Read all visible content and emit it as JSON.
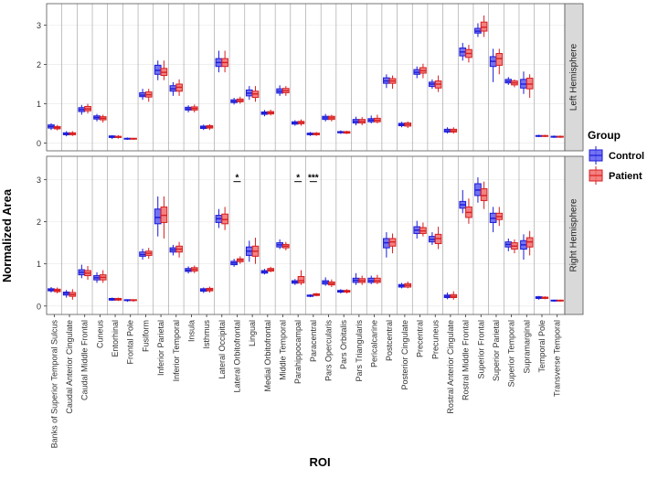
{
  "chart_data": {
    "type": "box",
    "xlabel": "ROI",
    "ylabel": "Normalized Area",
    "legend": {
      "title": "Group",
      "position": "right",
      "entries": [
        "Control",
        "Patient"
      ]
    },
    "colors": {
      "Control": "#5b5bf0",
      "Patient": "#f26b6b",
      "Control_stroke": "#1a1ad9",
      "Patient_stroke": "#d81e1e"
    },
    "grid": true,
    "ylim": [
      -0.2,
      3.55
    ],
    "yticks": [
      0,
      1,
      2,
      3
    ],
    "categories": [
      "Banks of Superior Temporal Sulcus",
      "Caudal Anterior Cingulate",
      "Caudal Middle Frontal",
      "Cuneus",
      "Entorhinal",
      "Frontal Pole",
      "Fusiform",
      "Inferior Parietal",
      "Inferior Temporal",
      "Insula",
      "Isthmus",
      "Lateral Occipital",
      "Lateral Orbitofrontal",
      "Lingual",
      "Medial Orbitofrontal",
      "Middle Temporal",
      "Parahippocampal",
      "Paracentral",
      "Pars Opercularis",
      "Pars Orbitalis",
      "Pars Triangularis",
      "Pericalcarine",
      "Postcentral",
      "Posterior Cingulate",
      "Precentral",
      "Precuneus",
      "Rostral Anterior Cingulate",
      "Rostral Middle Frontal",
      "Superior Frontal",
      "Superior Parietal",
      "Superior Temporal",
      "Supramarginal",
      "Temporal Pole",
      "Transverse Temporal"
    ],
    "panels": [
      {
        "name": "Left Hemisphere",
        "annotations": [],
        "boxes": {
          "Control": [
            [
              0.33,
              0.38,
              0.42,
              0.46,
              0.5
            ],
            [
              0.17,
              0.21,
              0.23,
              0.26,
              0.3
            ],
            [
              0.72,
              0.8,
              0.85,
              0.9,
              0.97
            ],
            [
              0.55,
              0.61,
              0.65,
              0.69,
              0.74
            ],
            [
              0.1,
              0.14,
              0.16,
              0.18,
              0.2
            ],
            [
              0.08,
              0.1,
              0.11,
              0.12,
              0.14
            ],
            [
              1.1,
              1.18,
              1.22,
              1.28,
              1.38
            ],
            [
              1.6,
              1.75,
              1.85,
              1.98,
              2.1
            ],
            [
              1.2,
              1.32,
              1.38,
              1.46,
              1.55
            ],
            [
              0.78,
              0.84,
              0.87,
              0.91,
              0.96
            ],
            [
              0.33,
              0.37,
              0.4,
              0.43,
              0.47
            ],
            [
              1.8,
              1.95,
              2.05,
              2.15,
              2.35
            ],
            [
              0.98,
              1.03,
              1.06,
              1.1,
              1.15
            ],
            [
              1.1,
              1.2,
              1.27,
              1.35,
              1.45
            ],
            [
              0.68,
              0.73,
              0.76,
              0.79,
              0.84
            ],
            [
              1.2,
              1.27,
              1.32,
              1.38,
              1.47
            ],
            [
              0.44,
              0.48,
              0.51,
              0.54,
              0.58
            ],
            [
              0.18,
              0.21,
              0.23,
              0.25,
              0.28
            ],
            [
              0.55,
              0.6,
              0.64,
              0.68,
              0.74
            ],
            [
              0.23,
              0.26,
              0.27,
              0.29,
              0.32
            ],
            [
              0.45,
              0.51,
              0.55,
              0.6,
              0.67
            ],
            [
              0.5,
              0.54,
              0.58,
              0.62,
              0.7
            ],
            [
              1.4,
              1.52,
              1.58,
              1.66,
              1.75
            ],
            [
              0.4,
              0.44,
              0.47,
              0.5,
              0.54
            ],
            [
              1.65,
              1.75,
              1.8,
              1.87,
              1.95
            ],
            [
              1.38,
              1.44,
              1.5,
              1.55,
              1.62
            ],
            [
              0.24,
              0.28,
              0.31,
              0.35,
              0.4
            ],
            [
              2.1,
              2.22,
              2.32,
              2.42,
              2.55
            ],
            [
              2.7,
              2.8,
              2.85,
              2.92,
              3.05
            ],
            [
              1.55,
              1.95,
              2.08,
              2.2,
              2.4
            ],
            [
              1.48,
              1.53,
              1.57,
              1.62,
              1.68
            ],
            [
              1.25,
              1.4,
              1.5,
              1.62,
              1.82
            ],
            [
              0.15,
              0.17,
              0.18,
              0.19,
              0.21
            ],
            [
              0.13,
              0.15,
              0.16,
              0.17,
              0.19
            ]
          ],
          "Patient": [
            [
              0.32,
              0.36,
              0.39,
              0.42,
              0.46
            ],
            [
              0.18,
              0.21,
              0.24,
              0.26,
              0.3
            ],
            [
              0.75,
              0.82,
              0.87,
              0.93,
              1.0
            ],
            [
              0.52,
              0.59,
              0.63,
              0.67,
              0.72
            ],
            [
              0.11,
              0.14,
              0.15,
              0.17,
              0.2
            ],
            [
              0.08,
              0.1,
              0.11,
              0.12,
              0.13
            ],
            [
              1.05,
              1.17,
              1.23,
              1.3,
              1.38
            ],
            [
              1.6,
              1.72,
              1.8,
              1.9,
              2.1
            ],
            [
              1.2,
              1.32,
              1.42,
              1.5,
              1.62
            ],
            [
              0.78,
              0.84,
              0.88,
              0.92,
              0.98
            ],
            [
              0.33,
              0.38,
              0.41,
              0.44,
              0.48
            ],
            [
              1.8,
              1.95,
              2.05,
              2.15,
              2.35
            ],
            [
              1.0,
              1.05,
              1.08,
              1.12,
              1.18
            ],
            [
              1.05,
              1.16,
              1.25,
              1.32,
              1.45
            ],
            [
              0.7,
              0.74,
              0.77,
              0.8,
              0.85
            ],
            [
              1.2,
              1.28,
              1.33,
              1.39,
              1.45
            ],
            [
              0.44,
              0.49,
              0.52,
              0.55,
              0.6
            ],
            [
              0.18,
              0.21,
              0.23,
              0.25,
              0.28
            ],
            [
              0.55,
              0.6,
              0.64,
              0.68,
              0.72
            ],
            [
              0.23,
              0.25,
              0.27,
              0.29,
              0.31
            ],
            [
              0.45,
              0.51,
              0.55,
              0.6,
              0.66
            ],
            [
              0.5,
              0.54,
              0.58,
              0.63,
              0.72
            ],
            [
              1.38,
              1.52,
              1.58,
              1.64,
              1.72
            ],
            [
              0.38,
              0.43,
              0.47,
              0.51,
              0.55
            ],
            [
              1.65,
              1.78,
              1.84,
              1.92,
              2.02
            ],
            [
              1.3,
              1.4,
              1.5,
              1.58,
              1.72
            ],
            [
              0.24,
              0.28,
              0.31,
              0.35,
              0.4
            ],
            [
              2.05,
              2.18,
              2.28,
              2.38,
              2.5
            ],
            [
              2.7,
              2.85,
              2.95,
              3.08,
              3.25
            ],
            [
              1.75,
              1.98,
              2.15,
              2.28,
              2.4
            ],
            [
              1.42,
              1.48,
              1.53,
              1.58,
              1.62
            ],
            [
              1.15,
              1.38,
              1.5,
              1.65,
              1.75
            ],
            [
              0.15,
              0.17,
              0.18,
              0.19,
              0.21
            ],
            [
              0.13,
              0.15,
              0.16,
              0.17,
              0.19
            ]
          ]
        }
      },
      {
        "name": "Right Hemisphere",
        "annotations": [
          {
            "category": "Lateral Orbitofrontal",
            "text": "*"
          },
          {
            "category": "Parahippocampal",
            "text": "*"
          },
          {
            "category": "Paracentral",
            "text": "***"
          }
        ],
        "boxes": {
          "Control": [
            [
              0.32,
              0.36,
              0.38,
              0.41,
              0.45
            ],
            [
              0.2,
              0.26,
              0.3,
              0.33,
              0.38
            ],
            [
              0.66,
              0.74,
              0.8,
              0.86,
              0.98
            ],
            [
              0.55,
              0.62,
              0.67,
              0.72,
              0.8
            ],
            [
              0.12,
              0.14,
              0.16,
              0.18,
              0.2
            ],
            [
              0.1,
              0.13,
              0.14,
              0.15,
              0.16
            ],
            [
              1.1,
              1.18,
              1.22,
              1.28,
              1.36
            ],
            [
              1.65,
              1.95,
              2.1,
              2.3,
              2.6
            ],
            [
              1.2,
              1.28,
              1.33,
              1.38,
              1.45
            ],
            [
              0.77,
              0.82,
              0.85,
              0.89,
              0.94
            ],
            [
              0.31,
              0.35,
              0.38,
              0.41,
              0.44
            ],
            [
              1.85,
              1.98,
              2.07,
              2.15,
              2.3
            ],
            [
              0.93,
              0.98,
              1.02,
              1.06,
              1.12
            ],
            [
              1.05,
              1.2,
              1.3,
              1.4,
              1.55
            ],
            [
              0.75,
              0.78,
              0.81,
              0.84,
              0.88
            ],
            [
              1.35,
              1.4,
              1.45,
              1.5,
              1.58
            ],
            [
              0.5,
              0.54,
              0.57,
              0.6,
              0.64
            ],
            [
              0.21,
              0.23,
              0.24,
              0.26,
              0.28
            ],
            [
              0.48,
              0.52,
              0.56,
              0.6,
              0.68
            ],
            [
              0.3,
              0.33,
              0.35,
              0.37,
              0.4
            ],
            [
              0.5,
              0.56,
              0.61,
              0.66,
              0.78
            ],
            [
              0.52,
              0.56,
              0.6,
              0.66,
              0.72
            ],
            [
              1.15,
              1.38,
              1.5,
              1.6,
              1.75
            ],
            [
              0.42,
              0.45,
              0.48,
              0.51,
              0.55
            ],
            [
              1.6,
              1.72,
              1.8,
              1.88,
              2.02
            ],
            [
              1.45,
              1.52,
              1.58,
              1.65,
              1.75
            ],
            [
              0.16,
              0.2,
              0.23,
              0.26,
              0.32
            ],
            [
              2.2,
              2.32,
              2.4,
              2.48,
              2.75
            ],
            [
              2.45,
              2.62,
              2.75,
              2.9,
              3.05
            ],
            [
              1.75,
              1.98,
              2.08,
              2.2,
              2.35
            ],
            [
              1.3,
              1.4,
              1.46,
              1.52,
              1.6
            ],
            [
              1.1,
              1.35,
              1.45,
              1.55,
              1.7
            ],
            [
              0.15,
              0.18,
              0.2,
              0.22,
              0.24
            ],
            [
              0.1,
              0.12,
              0.13,
              0.14,
              0.15
            ]
          ],
          "Patient": [
            [
              0.3,
              0.34,
              0.37,
              0.4,
              0.44
            ],
            [
              0.15,
              0.23,
              0.27,
              0.32,
              0.4
            ],
            [
              0.62,
              0.72,
              0.78,
              0.84,
              0.95
            ],
            [
              0.55,
              0.62,
              0.68,
              0.74,
              0.85
            ],
            [
              0.12,
              0.14,
              0.16,
              0.18,
              0.2
            ],
            [
              0.1,
              0.13,
              0.14,
              0.15,
              0.16
            ],
            [
              1.12,
              1.2,
              1.25,
              1.3,
              1.38
            ],
            [
              1.6,
              1.98,
              2.15,
              2.35,
              2.6
            ],
            [
              1.15,
              1.28,
              1.35,
              1.42,
              1.52
            ],
            [
              0.78,
              0.83,
              0.87,
              0.91,
              0.96
            ],
            [
              0.32,
              0.36,
              0.39,
              0.42,
              0.46
            ],
            [
              1.8,
              1.95,
              2.05,
              2.18,
              2.35
            ],
            [
              1.0,
              1.05,
              1.09,
              1.12,
              1.18
            ],
            [
              1.0,
              1.18,
              1.3,
              1.42,
              1.62
            ],
            [
              0.8,
              0.83,
              0.86,
              0.89,
              0.93
            ],
            [
              1.32,
              1.38,
              1.42,
              1.46,
              1.52
            ],
            [
              0.5,
              0.55,
              0.6,
              0.7,
              0.85
            ],
            [
              0.23,
              0.25,
              0.27,
              0.29,
              0.31
            ],
            [
              0.45,
              0.5,
              0.53,
              0.57,
              0.63
            ],
            [
              0.3,
              0.33,
              0.35,
              0.37,
              0.4
            ],
            [
              0.5,
              0.56,
              0.6,
              0.65,
              0.72
            ],
            [
              0.52,
              0.56,
              0.6,
              0.66,
              0.74
            ],
            [
              1.25,
              1.42,
              1.52,
              1.6,
              1.72
            ],
            [
              0.42,
              0.45,
              0.49,
              0.53,
              0.58
            ],
            [
              1.65,
              1.72,
              1.78,
              1.86,
              1.98
            ],
            [
              1.35,
              1.48,
              1.6,
              1.7,
              1.88
            ],
            [
              0.15,
              0.2,
              0.23,
              0.27,
              0.35
            ],
            [
              1.95,
              2.1,
              2.22,
              2.35,
              2.55
            ],
            [
              2.3,
              2.5,
              2.62,
              2.78,
              2.95
            ],
            [
              1.9,
              2.05,
              2.12,
              2.2,
              2.35
            ],
            [
              1.25,
              1.35,
              1.42,
              1.5,
              1.58
            ],
            [
              1.2,
              1.4,
              1.52,
              1.62,
              1.78
            ],
            [
              0.16,
              0.18,
              0.2,
              0.21,
              0.23
            ],
            [
              0.1,
              0.12,
              0.13,
              0.14,
              0.15
            ]
          ]
        }
      }
    ]
  }
}
